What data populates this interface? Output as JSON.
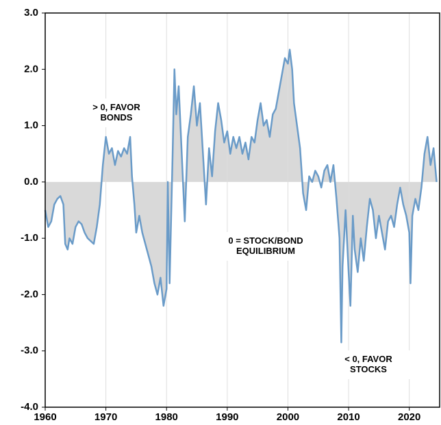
{
  "chart_data": {
    "type": "line",
    "annotations": [
      [
        "> 0, FAVOR",
        "BONDS"
      ],
      [
        "0 = STOCK/BOND",
        "EQUILIBRIUM"
      ],
      [
        "< 0, FAVOR",
        "STOCKS"
      ]
    ],
    "x": [
      1960,
      1960.5,
      1961,
      1961.5,
      1962,
      1962.5,
      1963,
      1963.3,
      1963.7,
      1964,
      1964.5,
      1965,
      1965.5,
      1966,
      1966.5,
      1967,
      1967.5,
      1968,
      1968.5,
      1969,
      1969.5,
      1970,
      1970.5,
      1971,
      1971.5,
      1972,
      1972.5,
      1973,
      1973.5,
      1974,
      1974.3,
      1974.7,
      1975,
      1975.5,
      1976,
      1976.5,
      1977,
      1977.5,
      1978,
      1978.5,
      1979,
      1979.5,
      1980,
      1980.2,
      1980.5,
      1981,
      1981.3,
      1981.6,
      1982,
      1982.5,
      1983,
      1983.5,
      1984,
      1984.5,
      1985,
      1985.5,
      1986,
      1986.5,
      1987,
      1987.5,
      1988,
      1988.5,
      1989,
      1989.5,
      1990,
      1990.5,
      1991,
      1991.5,
      1992,
      1992.5,
      1993,
      1993.5,
      1994,
      1994.5,
      1995,
      1995.5,
      1996,
      1996.5,
      1997,
      1997.5,
      1998,
      1998.5,
      1999,
      1999.5,
      2000,
      2000.3,
      2000.7,
      2001,
      2001.5,
      2002,
      2002.5,
      2003,
      2003.5,
      2004,
      2004.5,
      2005,
      2005.5,
      2006,
      2006.5,
      2007,
      2007.5,
      2008,
      2008.5,
      2008.8,
      2009,
      2009.5,
      2010,
      2010.3,
      2010.7,
      2011,
      2011.5,
      2012,
      2012.5,
      2013,
      2013.5,
      2014,
      2014.5,
      2015,
      2015.5,
      2016,
      2016.5,
      2017,
      2017.5,
      2018,
      2018.5,
      2019,
      2019.5,
      2020,
      2020.2,
      2020.5,
      2021,
      2021.5,
      2022,
      2022.5,
      2023,
      2023.5,
      2024,
      2024.5
    ],
    "series": [
      {
        "color": "#6a9bc8",
        "fill": "#d9d9d9",
        "values": [
          -0.5,
          -0.8,
          -0.7,
          -0.4,
          -0.3,
          -0.25,
          -0.4,
          -1.1,
          -1.2,
          -1.0,
          -1.1,
          -0.8,
          -0.7,
          -0.75,
          -0.9,
          -1.0,
          -1.05,
          -1.1,
          -0.8,
          -0.4,
          0.3,
          0.8,
          0.5,
          0.6,
          0.3,
          0.55,
          0.45,
          0.6,
          0.5,
          0.8,
          0.1,
          -0.4,
          -0.9,
          -0.6,
          -0.9,
          -1.1,
          -1.3,
          -1.5,
          -1.8,
          -2.0,
          -1.7,
          -2.2,
          -1.9,
          0.0,
          -1.8,
          0.5,
          2.0,
          1.2,
          1.7,
          0.5,
          -0.7,
          0.8,
          1.2,
          1.7,
          1.0,
          1.4,
          0.5,
          -0.4,
          0.6,
          0.1,
          0.9,
          1.4,
          1.1,
          0.7,
          0.9,
          0.5,
          0.8,
          0.6,
          0.8,
          0.5,
          0.7,
          0.4,
          0.8,
          0.7,
          1.1,
          1.4,
          1.0,
          1.1,
          0.8,
          1.2,
          1.3,
          1.6,
          1.9,
          2.2,
          2.1,
          2.35,
          2.0,
          1.4,
          1.0,
          0.6,
          -0.2,
          -0.5,
          0.1,
          0.0,
          0.2,
          0.1,
          -0.1,
          0.2,
          0.3,
          0.0,
          0.3,
          -0.3,
          -1.0,
          -2.85,
          -1.5,
          -0.5,
          -1.6,
          -2.2,
          -0.6,
          -1.2,
          -1.6,
          -1.0,
          -1.4,
          -0.8,
          -0.3,
          -0.5,
          -1.0,
          -0.6,
          -0.9,
          -1.2,
          -0.7,
          -0.6,
          -0.8,
          -0.4,
          -0.1,
          -0.4,
          -0.6,
          -0.9,
          -1.8,
          -0.6,
          -0.3,
          -0.5,
          -0.1,
          0.5,
          0.8,
          0.3,
          0.6,
          0.0
        ]
      }
    ],
    "xlim": [
      1960,
      2025
    ],
    "xticks": [
      1960,
      1970,
      1980,
      1990,
      2000,
      2010,
      2020
    ],
    "ylim": [
      -4,
      3
    ],
    "yticks": [
      {
        "value": -4,
        "label": "-4.0"
      },
      {
        "value": -3,
        "label": "-3.0"
      },
      {
        "value": -2,
        "label": "-2.0"
      },
      {
        "value": -1,
        "label": "-1.0"
      },
      {
        "value": 0,
        "label": "0.0"
      },
      {
        "value": 1,
        "label": "1.0"
      },
      {
        "value": 2,
        "label": "2.0"
      },
      {
        "value": 3,
        "label": "3.0"
      }
    ],
    "grid": "x"
  }
}
